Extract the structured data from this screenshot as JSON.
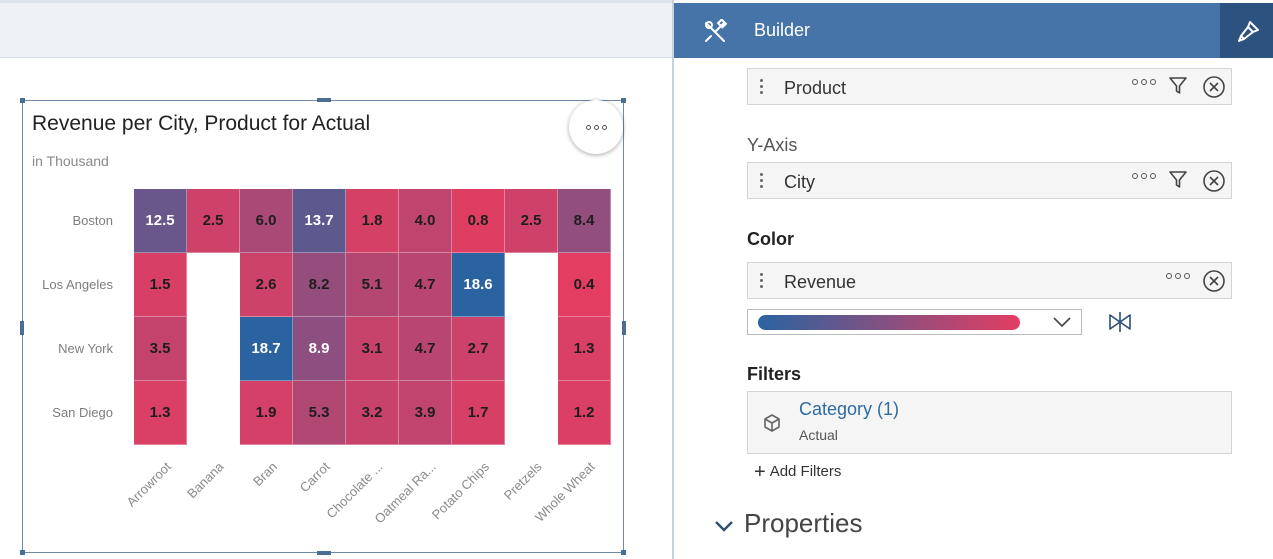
{
  "chart": {
    "title": "Revenue per City, Product for Actual",
    "subtitle": "in Thousand",
    "more_icon": "more-horizontal-icon"
  },
  "chart_data": {
    "type": "heatmap",
    "title": "Revenue per City, Product for Actual",
    "subtitle": "in Thousand",
    "x_categories": [
      "Arrowroot",
      "Banana",
      "Bran",
      "Carrot",
      "Chocolate ...",
      "Oatmeal Ra...",
      "Potato Chips",
      "Pretzels",
      "Whole Wheat"
    ],
    "y_categories": [
      "Boston",
      "Los Angeles",
      "New York",
      "San Diego"
    ],
    "values": [
      [
        12.5,
        2.5,
        6.0,
        13.7,
        1.8,
        4.0,
        0.8,
        2.5,
        8.4
      ],
      [
        1.5,
        null,
        2.6,
        8.2,
        5.1,
        4.7,
        18.6,
        null,
        0.4
      ],
      [
        3.5,
        null,
        18.7,
        8.9,
        3.1,
        4.7,
        2.7,
        null,
        1.3
      ],
      [
        1.3,
        null,
        1.9,
        5.3,
        3.2,
        3.9,
        1.7,
        null,
        1.2
      ]
    ],
    "color_scale": {
      "low": "#e33d62",
      "high": "#2a63a0",
      "min": 0.4,
      "max": 18.7
    }
  },
  "builder": {
    "title": "Builder",
    "header_color": "#4774a8",
    "tools_icon": "tools-icon",
    "styling_icon": "paintbrush-icon",
    "x_axis_dimension": "Product",
    "y_axis_label": "Y-Axis",
    "y_axis_dimension": "City",
    "color_label": "Color",
    "color_measure": "Revenue",
    "filters_label": "Filters",
    "filter_name": "Category (1)",
    "filter_value": "Actual",
    "add_filters": "Add Filters",
    "properties": "Properties"
  }
}
